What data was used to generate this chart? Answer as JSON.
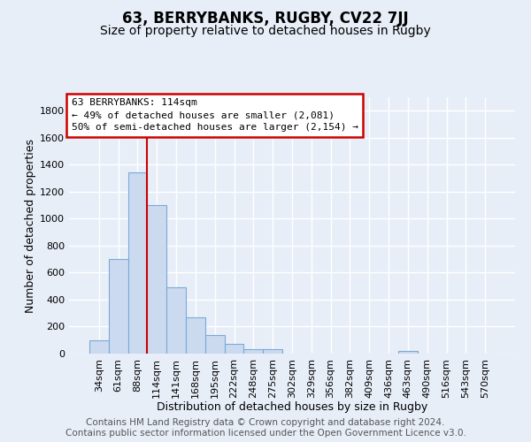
{
  "title": "63, BERRYBANKS, RUGBY, CV22 7JJ",
  "subtitle": "Size of property relative to detached houses in Rugby",
  "xlabel": "Distribution of detached houses by size in Rugby",
  "ylabel": "Number of detached properties",
  "footer_line1": "Contains HM Land Registry data © Crown copyright and database right 2024.",
  "footer_line2": "Contains public sector information licensed under the Open Government Licence v3.0.",
  "categories": [
    "34sqm",
    "61sqm",
    "88sqm",
    "114sqm",
    "141sqm",
    "168sqm",
    "195sqm",
    "222sqm",
    "248sqm",
    "275sqm",
    "302sqm",
    "329sqm",
    "356sqm",
    "382sqm",
    "409sqm",
    "436sqm",
    "463sqm",
    "490sqm",
    "516sqm",
    "543sqm",
    "570sqm"
  ],
  "values": [
    100,
    700,
    1340,
    1100,
    490,
    270,
    140,
    70,
    35,
    35,
    0,
    0,
    0,
    0,
    0,
    0,
    20,
    0,
    0,
    0,
    0
  ],
  "bar_color": "#ccdaf0",
  "bar_edge_color": "#7aaad4",
  "vline_x_index": 3,
  "vline_color": "#cc0000",
  "annotation_line1": "63 BERRYBANKS: 114sqm",
  "annotation_line2": "← 49% of detached houses are smaller (2,081)",
  "annotation_line3": "50% of semi-detached houses are larger (2,154) →",
  "annotation_box_facecolor": "#ffffff",
  "annotation_box_edgecolor": "#cc0000",
  "ylim": [
    0,
    1900
  ],
  "yticks": [
    0,
    200,
    400,
    600,
    800,
    1000,
    1200,
    1400,
    1600,
    1800
  ],
  "bg_color": "#e8eef8",
  "plot_bg_color": "#e8eef8",
  "grid_color": "#ffffff",
  "title_fontsize": 12,
  "subtitle_fontsize": 10,
  "axis_label_fontsize": 9,
  "tick_fontsize": 8,
  "annotation_fontsize": 8,
  "footer_fontsize": 7.5
}
